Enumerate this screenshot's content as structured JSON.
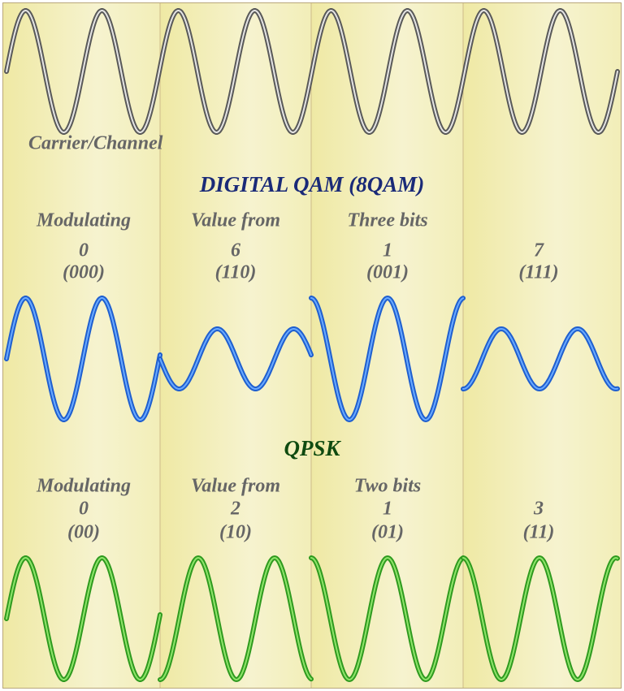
{
  "carrier_label": "Carrier/Channel",
  "qam": {
    "title": "DIGITAL QAM (8QAM)",
    "captions": [
      "Modulating",
      "Value from",
      "Three bits"
    ],
    "columns": [
      {
        "value": 0,
        "bits": "(000)"
      },
      {
        "value": 6,
        "bits": "(110)"
      },
      {
        "value": 1,
        "bits": "(001)"
      },
      {
        "value": 7,
        "bits": "(111)"
      }
    ]
  },
  "qpsk": {
    "title": "QPSK",
    "captions": [
      "Modulating",
      "Value from",
      "Two bits"
    ],
    "columns": [
      {
        "value": 0,
        "bits": "(00)"
      },
      {
        "value": 2,
        "bits": "(10)"
      },
      {
        "value": 1,
        "bits": "(01)"
      },
      {
        "value": 3,
        "bits": "(11)"
      }
    ]
  }
}
